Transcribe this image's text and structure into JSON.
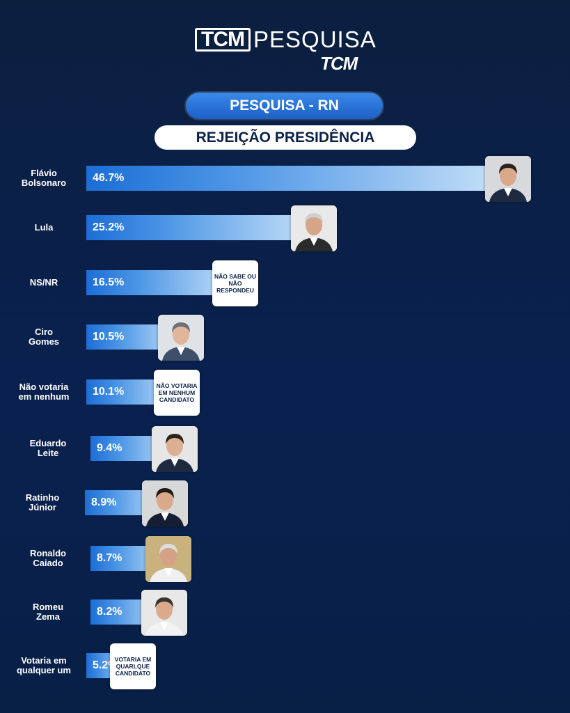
{
  "header": {
    "logo_left": "TCM",
    "logo_right": "PESQUISA",
    "logo_sub": "TCM"
  },
  "subtitle": "PESQUISA - RN",
  "title": "REJEIÇÃO PRESIDÊNCIA",
  "chart_data": {
    "type": "bar",
    "orientation": "horizontal",
    "title": "REJEIÇÃO PRESIDÊNCIA",
    "categories": [
      "Flávio Bolsonaro",
      "Lula",
      "NS/NR",
      "Ciro Gomes",
      "Não votaria em nenhum",
      "Eduardo Leite",
      "Ratinho Júnior",
      "Ronaldo Caiado",
      "Romeu Zema",
      "Votaria em qualquer um"
    ],
    "values": [
      46.7,
      25.2,
      16.5,
      10.5,
      10.1,
      9.4,
      8.9,
      8.7,
      8.2,
      5.2
    ],
    "value_labels": [
      "46.7%",
      "25.2%",
      "16.5%",
      "10.5%",
      "10.1%",
      "9.4%",
      "8.9%",
      "8.7%",
      "8.2%",
      "5.2%"
    ],
    "unit": "%",
    "colors": {
      "bar_start": "#1c6ed6",
      "bar_end": "#c9e2f8",
      "background": "#0b1f3f"
    }
  },
  "rows": [
    {
      "name": "Flávio\nBolsonaro",
      "badge": "photo",
      "badge_text": ""
    },
    {
      "name": "Lula",
      "badge": "photo",
      "badge_text": ""
    },
    {
      "name": "NS/NR",
      "badge": "text",
      "badge_text": "NÃO SABE OU NÃO RESPONDEU"
    },
    {
      "name": "Ciro\nGomes",
      "badge": "photo",
      "badge_text": ""
    },
    {
      "name": "Não votaria\nem nenhum",
      "badge": "text",
      "badge_text": "NÃO VOTARIA EM NENHUM CANDIDATO"
    },
    {
      "name": "Eduardo\nLeite",
      "badge": "photo",
      "badge_text": ""
    },
    {
      "name": "Ratinho\nJúnior",
      "badge": "photo",
      "badge_text": ""
    },
    {
      "name": "Ronaldo\nCaiado",
      "badge": "photo",
      "badge_text": ""
    },
    {
      "name": "Romeu\nZema",
      "badge": "photo",
      "badge_text": ""
    },
    {
      "name": "Votaria em\nqualquer um",
      "badge": "text",
      "badge_text": "VOTARIA EM QUARLQUE CANDIDATO"
    }
  ],
  "photo_styles": [
    {
      "bg": "#d7d9dc",
      "hair": "#2a211b",
      "skin": "#d9a98a",
      "suit": "#1d2a3f"
    },
    {
      "bg": "#e9e9e9",
      "hair": "#cfcfcf",
      "skin": "#d6a587",
      "suit": "#2b2b2b"
    },
    null,
    {
      "bg": "#dfe3e8",
      "hair": "#6d6f73",
      "skin": "#e0b59a",
      "suit": "#3d4f6a"
    },
    null,
    {
      "bg": "#e6e6e6",
      "hair": "#2b241e",
      "skin": "#dcaf92",
      "suit": "#1f2a40"
    },
    {
      "bg": "#d8d8d8",
      "hair": "#1f1a16",
      "skin": "#d9a98a",
      "suit": "#161e33"
    },
    {
      "bg": "#c9b27d",
      "hair": "#dcdcdc",
      "skin": "#d4a184",
      "suit": "#f0f0f0"
    },
    {
      "bg": "#e8e8e8",
      "hair": "#3a342f",
      "skin": "#dba98c",
      "suit": "#f2f2f2"
    },
    null
  ]
}
